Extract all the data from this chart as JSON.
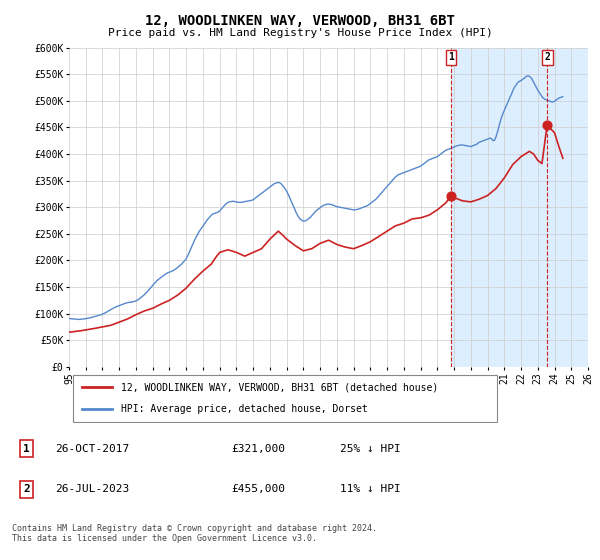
{
  "title": "12, WOODLINKEN WAY, VERWOOD, BH31 6BT",
  "subtitle": "Price paid vs. HM Land Registry's House Price Index (HPI)",
  "ylim": [
    0,
    600000
  ],
  "yticks": [
    0,
    50000,
    100000,
    150000,
    200000,
    250000,
    300000,
    350000,
    400000,
    450000,
    500000,
    550000,
    600000
  ],
  "ytick_labels": [
    "£0",
    "£50K",
    "£100K",
    "£150K",
    "£200K",
    "£250K",
    "£300K",
    "£350K",
    "£400K",
    "£450K",
    "£500K",
    "£550K",
    "£600K"
  ],
  "hpi_color": "#5588cc",
  "price_color": "#cc2222",
  "marker1_date": 2017.82,
  "marker1_price": 321000,
  "marker2_date": 2023.56,
  "marker2_price": 455000,
  "legend_entry1": "12, WOODLINKEN WAY, VERWOOD, BH31 6BT (detached house)",
  "legend_entry2": "HPI: Average price, detached house, Dorset",
  "annotation1_date": "26-OCT-2017",
  "annotation1_price": "£321,000",
  "annotation1_hpi": "25% ↓ HPI",
  "annotation2_date": "26-JUL-2023",
  "annotation2_price": "£455,000",
  "annotation2_hpi": "11% ↓ HPI",
  "footer": "Contains HM Land Registry data © Crown copyright and database right 2024.\nThis data is licensed under the Open Government Licence v3.0.",
  "background_color": "#ffffff",
  "highlight_color": "#ddeeff",
  "grid_color": "#cccccc",
  "xmin": 1995,
  "xmax": 2026,
  "xticks": [
    1995,
    1996,
    1997,
    1998,
    1999,
    2000,
    2001,
    2002,
    2003,
    2004,
    2005,
    2006,
    2007,
    2008,
    2009,
    2010,
    2011,
    2012,
    2013,
    2014,
    2015,
    2016,
    2017,
    2018,
    2019,
    2020,
    2021,
    2022,
    2023,
    2024,
    2025,
    2026
  ],
  "hpi_data": [
    [
      1995.0,
      91000
    ],
    [
      1995.08,
      90500
    ],
    [
      1995.17,
      90200
    ],
    [
      1995.25,
      89800
    ],
    [
      1995.33,
      89500
    ],
    [
      1995.42,
      89300
    ],
    [
      1995.5,
      89100
    ],
    [
      1995.58,
      89000
    ],
    [
      1995.67,
      89200
    ],
    [
      1995.75,
      89500
    ],
    [
      1995.83,
      89800
    ],
    [
      1995.92,
      90100
    ],
    [
      1996.0,
      90500
    ],
    [
      1996.08,
      91000
    ],
    [
      1996.17,
      91500
    ],
    [
      1996.25,
      92000
    ],
    [
      1996.33,
      92800
    ],
    [
      1996.42,
      93500
    ],
    [
      1996.5,
      94200
    ],
    [
      1996.58,
      95000
    ],
    [
      1996.67,
      95800
    ],
    [
      1996.75,
      96500
    ],
    [
      1996.83,
      97200
    ],
    [
      1996.92,
      98000
    ],
    [
      1997.0,
      99000
    ],
    [
      1997.08,
      100200
    ],
    [
      1997.17,
      101500
    ],
    [
      1997.25,
      103000
    ],
    [
      1997.33,
      104500
    ],
    [
      1997.42,
      106000
    ],
    [
      1997.5,
      107500
    ],
    [
      1997.58,
      109000
    ],
    [
      1997.67,
      110500
    ],
    [
      1997.75,
      112000
    ],
    [
      1997.83,
      113000
    ],
    [
      1997.92,
      114000
    ],
    [
      1998.0,
      115000
    ],
    [
      1998.08,
      116000
    ],
    [
      1998.17,
      117000
    ],
    [
      1998.25,
      118000
    ],
    [
      1998.33,
      119000
    ],
    [
      1998.42,
      120000
    ],
    [
      1998.5,
      120500
    ],
    [
      1998.58,
      121000
    ],
    [
      1998.67,
      121500
    ],
    [
      1998.75,
      122000
    ],
    [
      1998.83,
      122500
    ],
    [
      1998.92,
      123000
    ],
    [
      1999.0,
      124000
    ],
    [
      1999.08,
      125500
    ],
    [
      1999.17,
      127000
    ],
    [
      1999.25,
      129000
    ],
    [
      1999.33,
      131000
    ],
    [
      1999.42,
      133000
    ],
    [
      1999.5,
      135500
    ],
    [
      1999.58,
      138000
    ],
    [
      1999.67,
      141000
    ],
    [
      1999.75,
      144000
    ],
    [
      1999.83,
      147000
    ],
    [
      1999.92,
      150000
    ],
    [
      2000.0,
      153000
    ],
    [
      2000.08,
      156000
    ],
    [
      2000.17,
      159000
    ],
    [
      2000.25,
      162000
    ],
    [
      2000.33,
      164000
    ],
    [
      2000.42,
      166000
    ],
    [
      2000.5,
      168000
    ],
    [
      2000.58,
      170000
    ],
    [
      2000.67,
      172000
    ],
    [
      2000.75,
      174000
    ],
    [
      2000.83,
      175500
    ],
    [
      2000.92,
      177000
    ],
    [
      2001.0,
      178000
    ],
    [
      2001.08,
      179000
    ],
    [
      2001.17,
      180000
    ],
    [
      2001.25,
      181500
    ],
    [
      2001.33,
      183000
    ],
    [
      2001.42,
      185000
    ],
    [
      2001.5,
      187000
    ],
    [
      2001.58,
      189000
    ],
    [
      2001.67,
      191500
    ],
    [
      2001.75,
      194000
    ],
    [
      2001.83,
      197000
    ],
    [
      2001.92,
      200000
    ],
    [
      2002.0,
      203000
    ],
    [
      2002.08,
      208000
    ],
    [
      2002.17,
      214000
    ],
    [
      2002.25,
      220000
    ],
    [
      2002.33,
      226000
    ],
    [
      2002.42,
      232000
    ],
    [
      2002.5,
      238000
    ],
    [
      2002.58,
      243000
    ],
    [
      2002.67,
      248000
    ],
    [
      2002.75,
      253000
    ],
    [
      2002.83,
      257000
    ],
    [
      2002.92,
      261000
    ],
    [
      2003.0,
      264000
    ],
    [
      2003.08,
      268000
    ],
    [
      2003.17,
      272000
    ],
    [
      2003.25,
      276000
    ],
    [
      2003.33,
      279000
    ],
    [
      2003.42,
      282000
    ],
    [
      2003.5,
      285000
    ],
    [
      2003.58,
      287000
    ],
    [
      2003.67,
      288000
    ],
    [
      2003.75,
      289000
    ],
    [
      2003.83,
      290000
    ],
    [
      2003.92,
      291000
    ],
    [
      2004.0,
      293000
    ],
    [
      2004.08,
      296000
    ],
    [
      2004.17,
      299000
    ],
    [
      2004.25,
      302000
    ],
    [
      2004.33,
      305000
    ],
    [
      2004.42,
      307000
    ],
    [
      2004.5,
      309000
    ],
    [
      2004.58,
      310000
    ],
    [
      2004.67,
      310500
    ],
    [
      2004.75,
      311000
    ],
    [
      2004.83,
      311000
    ],
    [
      2004.92,
      310500
    ],
    [
      2005.0,
      310000
    ],
    [
      2005.08,
      309500
    ],
    [
      2005.17,
      309000
    ],
    [
      2005.25,
      309000
    ],
    [
      2005.33,
      309500
    ],
    [
      2005.42,
      310000
    ],
    [
      2005.5,
      310500
    ],
    [
      2005.58,
      311000
    ],
    [
      2005.67,
      311500
    ],
    [
      2005.75,
      312000
    ],
    [
      2005.83,
      312500
    ],
    [
      2005.92,
      313000
    ],
    [
      2006.0,
      314000
    ],
    [
      2006.08,
      316000
    ],
    [
      2006.17,
      318000
    ],
    [
      2006.25,
      320000
    ],
    [
      2006.33,
      322000
    ],
    [
      2006.42,
      324000
    ],
    [
      2006.5,
      326000
    ],
    [
      2006.58,
      328000
    ],
    [
      2006.67,
      330000
    ],
    [
      2006.75,
      332000
    ],
    [
      2006.83,
      334000
    ],
    [
      2006.92,
      336000
    ],
    [
      2007.0,
      338000
    ],
    [
      2007.08,
      340000
    ],
    [
      2007.17,
      342000
    ],
    [
      2007.25,
      344000
    ],
    [
      2007.33,
      345000
    ],
    [
      2007.42,
      346000
    ],
    [
      2007.5,
      346500
    ],
    [
      2007.58,
      346000
    ],
    [
      2007.67,
      344000
    ],
    [
      2007.75,
      341000
    ],
    [
      2007.83,
      338000
    ],
    [
      2007.92,
      334000
    ],
    [
      2008.0,
      330000
    ],
    [
      2008.08,
      325000
    ],
    [
      2008.17,
      319000
    ],
    [
      2008.25,
      313000
    ],
    [
      2008.33,
      307000
    ],
    [
      2008.42,
      301000
    ],
    [
      2008.5,
      295000
    ],
    [
      2008.58,
      289000
    ],
    [
      2008.67,
      284000
    ],
    [
      2008.75,
      280000
    ],
    [
      2008.83,
      277000
    ],
    [
      2008.92,
      275000
    ],
    [
      2009.0,
      274000
    ],
    [
      2009.08,
      274000
    ],
    [
      2009.17,
      275000
    ],
    [
      2009.25,
      277000
    ],
    [
      2009.33,
      279000
    ],
    [
      2009.42,
      281000
    ],
    [
      2009.5,
      284000
    ],
    [
      2009.58,
      287000
    ],
    [
      2009.67,
      290000
    ],
    [
      2009.75,
      293000
    ],
    [
      2009.83,
      295000
    ],
    [
      2009.92,
      297000
    ],
    [
      2010.0,
      299000
    ],
    [
      2010.08,
      301000
    ],
    [
      2010.17,
      303000
    ],
    [
      2010.25,
      304000
    ],
    [
      2010.33,
      305000
    ],
    [
      2010.42,
      305500
    ],
    [
      2010.5,
      306000
    ],
    [
      2010.58,
      305500
    ],
    [
      2010.67,
      305000
    ],
    [
      2010.75,
      304000
    ],
    [
      2010.83,
      303000
    ],
    [
      2010.92,
      302000
    ],
    [
      2011.0,
      301000
    ],
    [
      2011.08,
      300500
    ],
    [
      2011.17,
      300000
    ],
    [
      2011.25,
      299500
    ],
    [
      2011.33,
      299000
    ],
    [
      2011.42,
      298500
    ],
    [
      2011.5,
      298000
    ],
    [
      2011.58,
      297500
    ],
    [
      2011.67,
      297000
    ],
    [
      2011.75,
      296500
    ],
    [
      2011.83,
      296000
    ],
    [
      2011.92,
      295500
    ],
    [
      2012.0,
      295000
    ],
    [
      2012.08,
      295000
    ],
    [
      2012.17,
      295500
    ],
    [
      2012.25,
      296000
    ],
    [
      2012.33,
      297000
    ],
    [
      2012.42,
      298000
    ],
    [
      2012.5,
      299000
    ],
    [
      2012.58,
      300000
    ],
    [
      2012.67,
      301000
    ],
    [
      2012.75,
      302000
    ],
    [
      2012.83,
      303000
    ],
    [
      2012.92,
      305000
    ],
    [
      2013.0,
      307000
    ],
    [
      2013.08,
      309000
    ],
    [
      2013.17,
      311000
    ],
    [
      2013.25,
      313000
    ],
    [
      2013.33,
      315000
    ],
    [
      2013.42,
      318000
    ],
    [
      2013.5,
      321000
    ],
    [
      2013.58,
      324000
    ],
    [
      2013.67,
      327000
    ],
    [
      2013.75,
      330000
    ],
    [
      2013.83,
      333000
    ],
    [
      2013.92,
      336000
    ],
    [
      2014.0,
      339000
    ],
    [
      2014.08,
      342000
    ],
    [
      2014.17,
      345000
    ],
    [
      2014.25,
      348000
    ],
    [
      2014.33,
      351000
    ],
    [
      2014.42,
      354000
    ],
    [
      2014.5,
      357000
    ],
    [
      2014.58,
      359000
    ],
    [
      2014.67,
      361000
    ],
    [
      2014.75,
      362000
    ],
    [
      2014.83,
      363000
    ],
    [
      2014.92,
      364000
    ],
    [
      2015.0,
      365000
    ],
    [
      2015.08,
      366000
    ],
    [
      2015.17,
      367000
    ],
    [
      2015.25,
      368000
    ],
    [
      2015.33,
      369000
    ],
    [
      2015.42,
      370000
    ],
    [
      2015.5,
      371000
    ],
    [
      2015.58,
      372000
    ],
    [
      2015.67,
      373000
    ],
    [
      2015.75,
      374000
    ],
    [
      2015.83,
      375000
    ],
    [
      2015.92,
      376000
    ],
    [
      2016.0,
      377000
    ],
    [
      2016.08,
      379000
    ],
    [
      2016.17,
      381000
    ],
    [
      2016.25,
      383000
    ],
    [
      2016.33,
      385000
    ],
    [
      2016.42,
      387000
    ],
    [
      2016.5,
      389000
    ],
    [
      2016.58,
      390000
    ],
    [
      2016.67,
      391000
    ],
    [
      2016.75,
      392000
    ],
    [
      2016.83,
      393000
    ],
    [
      2016.92,
      394000
    ],
    [
      2017.0,
      395000
    ],
    [
      2017.08,
      397000
    ],
    [
      2017.17,
      399000
    ],
    [
      2017.25,
      401000
    ],
    [
      2017.33,
      403000
    ],
    [
      2017.42,
      405000
    ],
    [
      2017.5,
      407000
    ],
    [
      2017.58,
      408000
    ],
    [
      2017.67,
      409000
    ],
    [
      2017.75,
      410000
    ],
    [
      2017.83,
      411000
    ],
    [
      2017.92,
      412000
    ],
    [
      2018.0,
      413000
    ],
    [
      2018.08,
      414500
    ],
    [
      2018.17,
      415500
    ],
    [
      2018.25,
      416000
    ],
    [
      2018.33,
      416500
    ],
    [
      2018.42,
      417000
    ],
    [
      2018.5,
      417000
    ],
    [
      2018.58,
      416500
    ],
    [
      2018.67,
      416000
    ],
    [
      2018.75,
      415500
    ],
    [
      2018.83,
      415000
    ],
    [
      2018.92,
      414500
    ],
    [
      2019.0,
      414000
    ],
    [
      2019.08,
      415000
    ],
    [
      2019.17,
      416000
    ],
    [
      2019.25,
      417000
    ],
    [
      2019.33,
      418000
    ],
    [
      2019.42,
      420000
    ],
    [
      2019.5,
      422000
    ],
    [
      2019.58,
      423000
    ],
    [
      2019.67,
      424000
    ],
    [
      2019.75,
      425000
    ],
    [
      2019.83,
      426000
    ],
    [
      2019.92,
      427000
    ],
    [
      2020.0,
      428000
    ],
    [
      2020.08,
      429000
    ],
    [
      2020.17,
      430000
    ],
    [
      2020.25,
      428000
    ],
    [
      2020.33,
      425000
    ],
    [
      2020.42,
      426000
    ],
    [
      2020.5,
      432000
    ],
    [
      2020.58,
      440000
    ],
    [
      2020.67,
      450000
    ],
    [
      2020.75,
      460000
    ],
    [
      2020.83,
      468000
    ],
    [
      2020.92,
      476000
    ],
    [
      2021.0,
      482000
    ],
    [
      2021.08,
      488000
    ],
    [
      2021.17,
      494000
    ],
    [
      2021.25,
      500000
    ],
    [
      2021.33,
      506000
    ],
    [
      2021.42,
      512000
    ],
    [
      2021.5,
      518000
    ],
    [
      2021.58,
      524000
    ],
    [
      2021.67,
      528000
    ],
    [
      2021.75,
      532000
    ],
    [
      2021.83,
      535000
    ],
    [
      2021.92,
      537000
    ],
    [
      2022.0,
      538000
    ],
    [
      2022.08,
      540000
    ],
    [
      2022.17,
      542000
    ],
    [
      2022.25,
      544000
    ],
    [
      2022.33,
      546000
    ],
    [
      2022.42,
      547000
    ],
    [
      2022.5,
      546000
    ],
    [
      2022.58,
      544000
    ],
    [
      2022.67,
      540000
    ],
    [
      2022.75,
      535000
    ],
    [
      2022.83,
      530000
    ],
    [
      2022.92,
      525000
    ],
    [
      2023.0,
      520000
    ],
    [
      2023.08,
      516000
    ],
    [
      2023.17,
      512000
    ],
    [
      2023.25,
      508000
    ],
    [
      2023.33,
      505000
    ],
    [
      2023.42,
      503000
    ],
    [
      2023.5,
      502000
    ],
    [
      2023.58,
      501000
    ],
    [
      2023.67,
      500000
    ],
    [
      2023.75,
      499000
    ],
    [
      2023.83,
      498000
    ],
    [
      2023.92,
      498000
    ],
    [
      2024.0,
      499000
    ],
    [
      2024.08,
      501000
    ],
    [
      2024.17,
      503000
    ],
    [
      2024.25,
      505000
    ],
    [
      2024.33,
      506000
    ],
    [
      2024.42,
      507000
    ],
    [
      2024.5,
      508000
    ]
  ],
  "price_data": [
    [
      1995.0,
      65000
    ],
    [
      1995.75,
      68000
    ],
    [
      1996.5,
      72000
    ],
    [
      1997.5,
      78000
    ],
    [
      1998.0,
      84000
    ],
    [
      1998.5,
      90000
    ],
    [
      1999.0,
      98000
    ],
    [
      1999.5,
      105000
    ],
    [
      2000.0,
      110000
    ],
    [
      2000.5,
      118000
    ],
    [
      2001.0,
      125000
    ],
    [
      2001.5,
      135000
    ],
    [
      2002.0,
      148000
    ],
    [
      2002.5,
      165000
    ],
    [
      2003.0,
      180000
    ],
    [
      2003.5,
      193000
    ],
    [
      2003.75,
      205000
    ],
    [
      2004.0,
      215000
    ],
    [
      2004.5,
      220000
    ],
    [
      2005.0,
      215000
    ],
    [
      2005.5,
      208000
    ],
    [
      2006.0,
      215000
    ],
    [
      2006.5,
      222000
    ],
    [
      2007.0,
      240000
    ],
    [
      2007.5,
      255000
    ],
    [
      2007.75,
      248000
    ],
    [
      2008.0,
      240000
    ],
    [
      2008.5,
      228000
    ],
    [
      2009.0,
      218000
    ],
    [
      2009.5,
      222000
    ],
    [
      2010.0,
      232000
    ],
    [
      2010.5,
      238000
    ],
    [
      2011.0,
      230000
    ],
    [
      2011.5,
      225000
    ],
    [
      2012.0,
      222000
    ],
    [
      2012.5,
      228000
    ],
    [
      2013.0,
      235000
    ],
    [
      2013.5,
      245000
    ],
    [
      2014.0,
      255000
    ],
    [
      2014.5,
      265000
    ],
    [
      2015.0,
      270000
    ],
    [
      2015.5,
      278000
    ],
    [
      2016.0,
      280000
    ],
    [
      2016.5,
      285000
    ],
    [
      2017.0,
      295000
    ],
    [
      2017.5,
      308000
    ],
    [
      2017.82,
      321000
    ],
    [
      2018.0,
      318000
    ],
    [
      2018.5,
      312000
    ],
    [
      2019.0,
      310000
    ],
    [
      2019.5,
      315000
    ],
    [
      2020.0,
      322000
    ],
    [
      2020.5,
      335000
    ],
    [
      2021.0,
      355000
    ],
    [
      2021.5,
      380000
    ],
    [
      2022.0,
      395000
    ],
    [
      2022.5,
      405000
    ],
    [
      2022.75,
      400000
    ],
    [
      2023.0,
      388000
    ],
    [
      2023.25,
      382000
    ],
    [
      2023.56,
      455000
    ],
    [
      2023.75,
      448000
    ],
    [
      2024.0,
      440000
    ],
    [
      2024.25,
      415000
    ],
    [
      2024.5,
      392000
    ]
  ]
}
